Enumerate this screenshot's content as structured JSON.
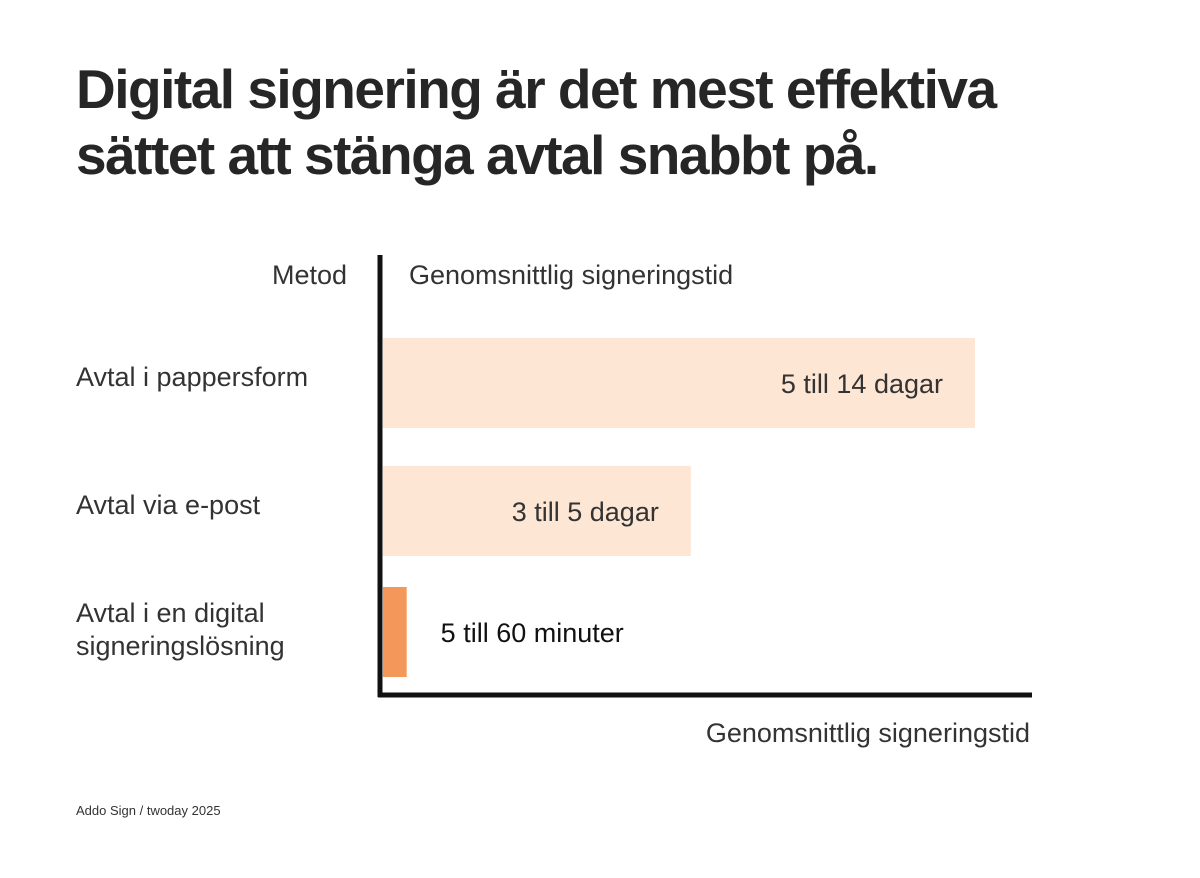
{
  "title_lines": [
    "Digital signering är det mest effektiva",
    "sättet att stänga avtal snabbt på."
  ],
  "source": "Addo Sign / twoday 2025",
  "colors": {
    "bar_light": "#fde6d4",
    "bar_accent": "#f4975a",
    "axis": "#111111",
    "text": "#333333"
  },
  "chart_data": {
    "type": "bar",
    "orientation": "horizontal",
    "category_header": "Metod",
    "value_header": "Genomsnittlig signeringstid",
    "xlabel": "Genomsnittlig signeringstid",
    "ylabel": "Metod",
    "categories": [
      [
        "Avtal i pappersform"
      ],
      [
        "Avtal via e-post"
      ],
      [
        "Avtal i en digital",
        "signeringslösning"
      ]
    ],
    "value_labels": [
      "5 till 14 dagar",
      "3 till 5 dagar",
      "5 till 60 minuter"
    ],
    "values": [
      100,
      52,
      4
    ],
    "highlight": [
      false,
      false,
      true
    ],
    "xlim": [
      0,
      110
    ],
    "grid": false,
    "legend": "none"
  }
}
